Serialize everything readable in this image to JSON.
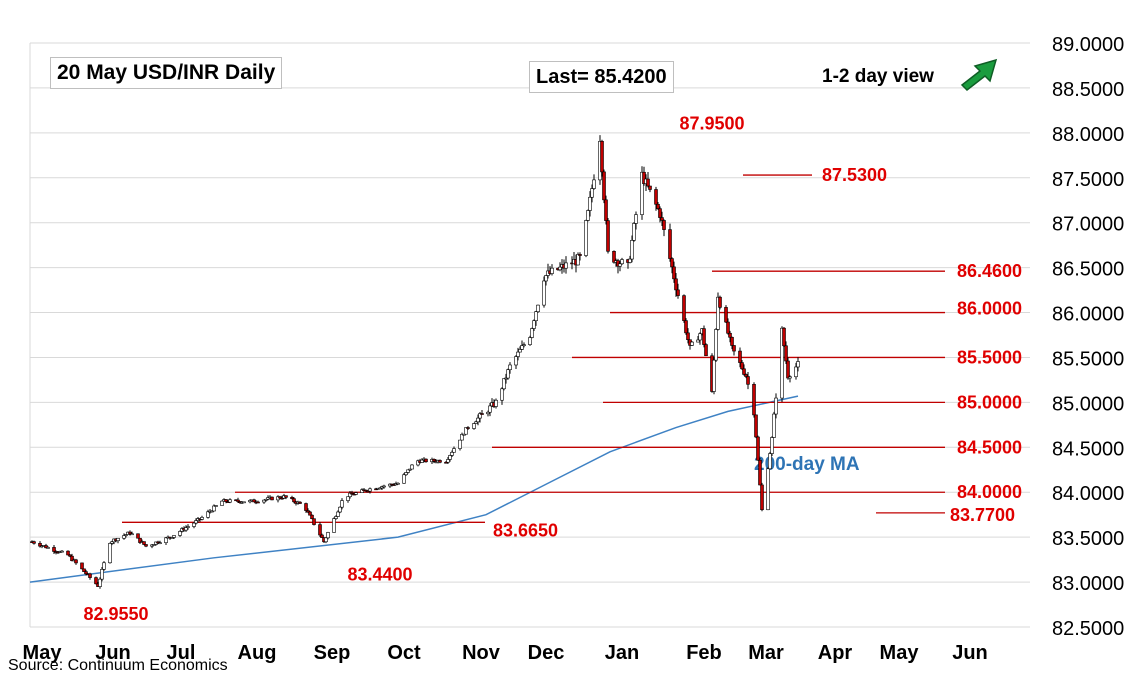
{
  "header": {
    "title": "20 May  USD/INR  Daily",
    "last": "Last= 85.4200",
    "view": "1-2 day view",
    "view_icon": "up-right-arrow-icon"
  },
  "source": "Source: Continuum Economics",
  "colors": {
    "up_candle": "#ffffff",
    "down_candle": "#c00000",
    "candle_outline": "#000000",
    "level_line": "#c00000",
    "level_text": "#e00000",
    "ma_line": "#3f82c4",
    "ma_text": "#2e74b5",
    "grid": "#d9d9d9",
    "arrow": "#1a9c3e"
  },
  "chart_data": {
    "type": "candlestick",
    "title": "20 May  USD/INR  Daily",
    "ylim": [
      82.5,
      89.0
    ],
    "y_ticks": [
      "89.0000",
      "88.5000",
      "88.0000",
      "87.5000",
      "87.0000",
      "86.5000",
      "86.0000",
      "85.5000",
      "85.0000",
      "84.5000",
      "84.0000",
      "83.5000",
      "83.0000",
      "82.5000"
    ],
    "x_ticks": [
      "May",
      "Jun",
      "Jul",
      "Aug",
      "Sep",
      "Oct",
      "Nov",
      "Dec",
      "Jan",
      "Feb",
      "Mar",
      "Apr",
      "May",
      "Jun"
    ],
    "grid": "horizontal",
    "price_path": [
      [
        "2024-05-02",
        83.45
      ],
      [
        "2024-05-20",
        83.3
      ],
      [
        "2024-05-31",
        83.05
      ],
      [
        "2024-06-04",
        82.96
      ],
      [
        "2024-06-10",
        83.45
      ],
      [
        "2024-06-20",
        83.55
      ],
      [
        "2024-06-28",
        83.4
      ],
      [
        "2024-07-10",
        83.5
      ],
      [
        "2024-07-25",
        83.7
      ],
      [
        "2024-08-05",
        83.9
      ],
      [
        "2024-08-20",
        83.9
      ],
      [
        "2024-09-05",
        83.95
      ],
      [
        "2024-09-15",
        83.85
      ],
      [
        "2024-09-25",
        83.45
      ],
      [
        "2024-10-05",
        83.95
      ],
      [
        "2024-10-20",
        84.05
      ],
      [
        "2024-11-01",
        84.1
      ],
      [
        "2024-11-10",
        84.35
      ],
      [
        "2024-11-25",
        84.35
      ],
      [
        "2024-12-05",
        84.7
      ],
      [
        "2024-12-20",
        85.0
      ],
      [
        "2024-12-27",
        85.4
      ],
      [
        "2025-01-06",
        85.75
      ],
      [
        "2025-01-13",
        86.4
      ],
      [
        "2025-01-22",
        86.5
      ],
      [
        "2025-01-31",
        86.6
      ],
      [
        "2025-02-04",
        87.1
      ],
      [
        "2025-02-10",
        87.95
      ],
      [
        "2025-02-14",
        86.65
      ],
      [
        "2025-02-24",
        86.5
      ],
      [
        "2025-03-03",
        87.53
      ],
      [
        "2025-03-12",
        87.1
      ],
      [
        "2025-03-20",
        86.3
      ],
      [
        "2025-03-27",
        85.6
      ],
      [
        "2025-04-02",
        85.8
      ],
      [
        "2025-04-07",
        85.1
      ],
      [
        "2025-04-10",
        86.2
      ],
      [
        "2025-04-17",
        85.6
      ],
      [
        "2025-04-24",
        85.3
      ],
      [
        "2025-04-28",
        84.9
      ],
      [
        "2025-05-02",
        83.8
      ],
      [
        "2025-05-07",
        84.6
      ],
      [
        "2025-05-12",
        85.8
      ],
      [
        "2025-05-15",
        85.3
      ],
      [
        "2025-05-20",
        85.42
      ]
    ],
    "moving_average": {
      "name": "200-day MA",
      "points": [
        [
          "2024-05-01",
          83.0
        ],
        [
          "2024-08-01",
          83.27
        ],
        [
          "2024-11-01",
          83.5
        ],
        [
          "2024-12-15",
          83.75
        ],
        [
          "2025-01-15",
          84.1
        ],
        [
          "2025-02-15",
          84.45
        ],
        [
          "2025-03-20",
          84.72
        ],
        [
          "2025-04-15",
          84.9
        ],
        [
          "2025-05-20",
          85.07
        ]
      ]
    },
    "levels": [
      {
        "value": 87.95,
        "label": "87.9500"
      },
      {
        "value": 87.53,
        "label": "87.5300"
      },
      {
        "value": 86.46,
        "label": "86.4600"
      },
      {
        "value": 86.0,
        "label": "86.0000"
      },
      {
        "value": 85.5,
        "label": "85.5000"
      },
      {
        "value": 85.0,
        "label": "85.0000"
      },
      {
        "value": 84.5,
        "label": "84.5000"
      },
      {
        "value": 84.0,
        "label": "84.0000"
      },
      {
        "value": 83.77,
        "label": "83.7700"
      },
      {
        "value": 83.665,
        "label": "83.6650"
      },
      {
        "value": 83.44,
        "label": "83.4400"
      },
      {
        "value": 82.955,
        "label": "82.9550"
      }
    ]
  }
}
